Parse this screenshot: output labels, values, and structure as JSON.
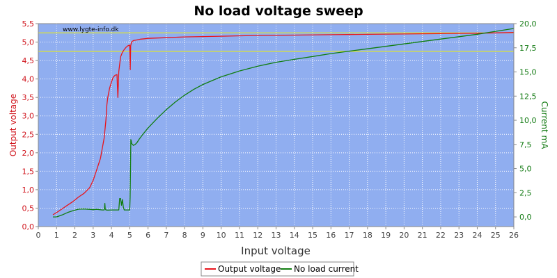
{
  "chart_data": {
    "type": "line",
    "title": "No load voltage sweep",
    "watermark": "www.lygte-info.dk",
    "xlabel": "Input voltage",
    "ylabel_left": "Output voltage",
    "ylabel_right": "Current mA",
    "xlim": [
      0,
      26
    ],
    "ylim_left": [
      0,
      5.5
    ],
    "ylim_right": [
      -1,
      20
    ],
    "x_ticks": [
      "0",
      "1",
      "2",
      "3",
      "4",
      "5",
      "6",
      "7",
      "8",
      "9",
      "10",
      "11",
      "12",
      "13",
      "14",
      "15",
      "16",
      "17",
      "18",
      "19",
      "20",
      "21",
      "22",
      "23",
      "24",
      "25",
      "26"
    ],
    "y_ticks_left": [
      "0,0",
      "0,5",
      "1,0",
      "1,5",
      "2,0",
      "2,5",
      "3,0",
      "3,5",
      "4,0",
      "4,5",
      "5,0",
      "5,5"
    ],
    "y_ticks_left_values": [
      0,
      0.5,
      1,
      1.5,
      2,
      2.5,
      3,
      3.5,
      4,
      4.5,
      5,
      5.5
    ],
    "y_ticks_right": [
      "0,0",
      "2,5",
      "5,0",
      "7,5",
      "10,0",
      "12,5",
      "15,0",
      "17,5",
      "20,0"
    ],
    "y_ticks_right_values": [
      0,
      2.5,
      5,
      7.5,
      10,
      12.5,
      15,
      17.5,
      20
    ],
    "reference_lines_left": [
      5.25,
      4.75
    ],
    "grid": true,
    "legend_position": "bottom",
    "colors": {
      "plot_bg": "#90aef0",
      "grid": "#ffffff",
      "reference_line": "#f2f200",
      "series_output": "#e8141c",
      "series_current": "#0f7d0f"
    },
    "series": [
      {
        "name": "Output voltage",
        "axis": "left",
        "x": [
          0.8,
          1.0,
          1.3,
          1.6,
          1.9,
          2.2,
          2.5,
          2.8,
          3.0,
          3.2,
          3.4,
          3.6,
          3.7,
          3.75,
          3.8,
          3.9,
          4.0,
          4.1,
          4.2,
          4.3,
          4.35,
          4.4,
          4.45,
          4.5,
          4.6,
          4.7,
          4.8,
          4.9,
          5.0,
          5.03,
          5.05,
          5.1,
          5.2,
          5.4,
          5.6,
          5.8,
          6.0,
          6.5,
          7,
          8,
          9,
          10,
          12,
          14,
          16,
          18,
          20,
          22,
          24,
          25,
          26
        ],
        "values": [
          0.32,
          0.38,
          0.48,
          0.58,
          0.68,
          0.8,
          0.9,
          1.05,
          1.25,
          1.55,
          1.85,
          2.4,
          2.9,
          3.3,
          3.5,
          3.75,
          3.92,
          4.05,
          4.1,
          4.12,
          3.5,
          4.2,
          4.4,
          4.6,
          4.72,
          4.8,
          4.86,
          4.9,
          4.92,
          4.25,
          4.9,
          5.0,
          5.04,
          5.06,
          5.08,
          5.09,
          5.1,
          5.11,
          5.12,
          5.14,
          5.15,
          5.16,
          5.18,
          5.19,
          5.2,
          5.21,
          5.22,
          5.23,
          5.24,
          5.25,
          5.26
        ]
      },
      {
        "name": "No load current",
        "axis": "right",
        "x": [
          0.8,
          1.0,
          1.3,
          1.6,
          1.9,
          2.2,
          2.5,
          2.8,
          3.0,
          3.2,
          3.5,
          3.6,
          3.62,
          3.64,
          3.66,
          3.7,
          3.8,
          4.0,
          4.3,
          4.4,
          4.45,
          4.5,
          4.55,
          4.6,
          4.65,
          4.7,
          5.0,
          5.02,
          5.04,
          5.06,
          5.08,
          5.1,
          5.2,
          5.3,
          5.4,
          5.5,
          5.7,
          6.0,
          6.5,
          7,
          7.5,
          8,
          8.5,
          9,
          9.5,
          10,
          11,
          12,
          13,
          14,
          15,
          16,
          17,
          18,
          19,
          20,
          21,
          22,
          23,
          24,
          25,
          26
        ],
        "values": [
          0.0,
          0.0,
          0.2,
          0.45,
          0.65,
          0.8,
          0.82,
          0.78,
          0.75,
          0.78,
          0.72,
          0.72,
          0.9,
          1.4,
          0.85,
          0.72,
          0.7,
          0.72,
          0.72,
          0.72,
          1.9,
          1.9,
          1.2,
          1.8,
          1.0,
          0.72,
          0.72,
          2.0,
          4.5,
          8.0,
          7.9,
          7.6,
          7.4,
          7.5,
          7.7,
          8.0,
          8.5,
          9.2,
          10.2,
          11.1,
          11.9,
          12.6,
          13.2,
          13.7,
          14.1,
          14.5,
          15.1,
          15.6,
          16.0,
          16.3,
          16.6,
          16.9,
          17.15,
          17.4,
          17.65,
          17.9,
          18.15,
          18.4,
          18.65,
          18.9,
          19.2,
          19.5
        ]
      }
    ]
  }
}
